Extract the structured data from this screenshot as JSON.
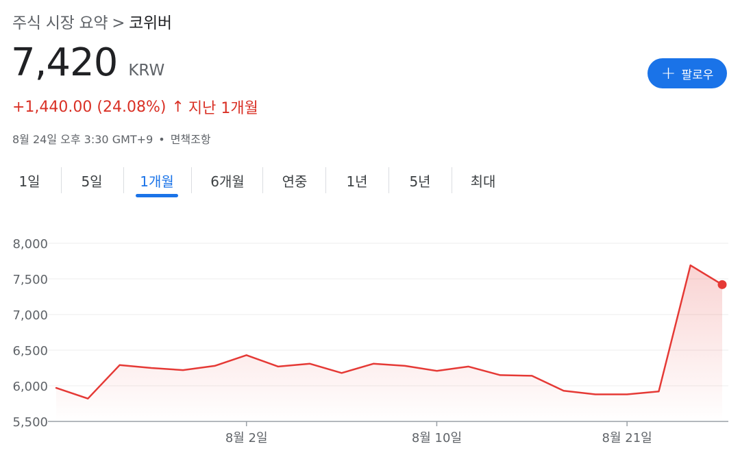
{
  "breadcrumb": {
    "root": "주식 시장 요약",
    "separator": ">",
    "current": "코위버"
  },
  "quote": {
    "price": "7,420",
    "currency": "KRW",
    "change": "+1,440.00 (24.08%)",
    "arrow": "↑",
    "period": "지난 1개월",
    "timestamp": "8월 24일 오후 3:30 GMT+9",
    "dot": "•",
    "disclaimer": "면책조항"
  },
  "follow": {
    "plus": "+",
    "label": "팔로우"
  },
  "tabs": [
    {
      "label": "1일",
      "active": false
    },
    {
      "label": "5일",
      "active": false
    },
    {
      "label": "1개월",
      "active": true
    },
    {
      "label": "6개월",
      "active": false
    },
    {
      "label": "연중",
      "active": false
    },
    {
      "label": "1년",
      "active": false
    },
    {
      "label": "5년",
      "active": false
    },
    {
      "label": "최대",
      "active": false
    }
  ],
  "colors": {
    "accent": "#1a73e8",
    "down_up": "#d93025",
    "grid": "#ececec"
  },
  "chart_data": {
    "type": "area",
    "ylim": [
      5500,
      8000
    ],
    "yticks": [
      5500,
      6000,
      6500,
      7000,
      7500,
      8000
    ],
    "ytick_labels": [
      "5,500",
      "6,000",
      "6,500",
      "7,000",
      "7,500",
      "8,000"
    ],
    "xtick_labels": [
      {
        "label": "8월 2일",
        "index": 6
      },
      {
        "label": "8월 10일",
        "index": 12
      },
      {
        "label": "8월 21일",
        "index": 18
      }
    ],
    "values": [
      5970,
      5820,
      6290,
      6250,
      6220,
      6280,
      6430,
      6270,
      6310,
      6180,
      6310,
      6280,
      6210,
      6270,
      6150,
      6140,
      5930,
      5880,
      5880,
      5920,
      7690,
      7420
    ],
    "line_color": "#e53935",
    "grid": true
  }
}
